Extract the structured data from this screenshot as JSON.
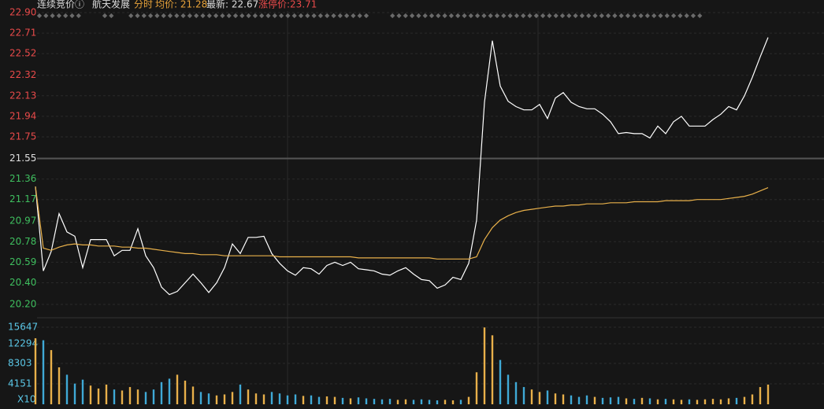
{
  "header": {
    "status": "连续竞价ⓘ",
    "name": "航天发展",
    "mode": "分时",
    "avg": "均价: 21.28",
    "last": "最新: 22.67",
    "limit": "涨停价:23.71"
  },
  "chart_data": [
    {
      "type": "line",
      "series": [
        {
          "color": "#ffffff",
          "values": [
            21.29,
            20.51,
            20.69,
            21.04,
            20.87,
            20.83,
            20.54,
            20.8,
            20.8,
            20.8,
            20.65,
            20.7,
            20.7,
            20.9,
            20.65,
            20.54,
            20.36,
            20.29,
            20.32,
            20.4,
            20.48,
            20.4,
            20.31,
            20.4,
            20.54,
            20.76,
            20.67,
            20.82,
            20.82,
            20.83,
            20.67,
            20.58,
            20.51,
            20.47,
            20.54,
            20.53,
            20.48,
            20.56,
            20.59,
            20.56,
            20.59,
            20.53,
            20.52,
            20.51,
            20.48,
            20.47,
            20.51,
            20.54,
            20.48,
            20.43,
            20.42,
            20.35,
            20.38,
            20.45,
            20.43,
            20.58,
            20.98,
            22.07,
            22.64,
            22.22,
            22.08,
            22.03,
            22.0,
            22.0,
            22.05,
            21.92,
            22.11,
            22.16,
            22.07,
            22.03,
            22.01,
            22.01,
            21.96,
            21.89,
            21.78,
            21.79,
            21.78,
            21.78,
            21.74,
            21.85,
            21.78,
            21.89,
            21.94,
            21.85,
            21.85,
            21.85,
            21.91,
            21.96,
            22.03,
            22.0,
            22.13,
            22.3,
            22.49,
            22.67
          ]
        },
        {
          "color": "#e8b04a",
          "values": [
            21.29,
            20.72,
            20.7,
            20.73,
            20.75,
            20.76,
            20.75,
            20.75,
            20.74,
            20.74,
            20.74,
            20.73,
            20.73,
            20.72,
            20.72,
            20.71,
            20.7,
            20.69,
            20.68,
            20.67,
            20.67,
            20.66,
            20.66,
            20.66,
            20.65,
            20.65,
            20.65,
            20.65,
            20.65,
            20.65,
            20.65,
            20.64,
            20.64,
            20.64,
            20.64,
            20.64,
            20.64,
            20.64,
            20.64,
            20.64,
            20.64,
            20.63,
            20.63,
            20.63,
            20.63,
            20.63,
            20.63,
            20.63,
            20.63,
            20.63,
            20.63,
            20.62,
            20.62,
            20.62,
            20.62,
            20.62,
            20.64,
            20.8,
            20.91,
            20.98,
            21.02,
            21.05,
            21.07,
            21.08,
            21.09,
            21.1,
            21.11,
            21.11,
            21.12,
            21.12,
            21.13,
            21.13,
            21.13,
            21.14,
            21.14,
            21.14,
            21.15,
            21.15,
            21.15,
            21.15,
            21.16,
            21.16,
            21.16,
            21.16,
            21.17,
            21.17,
            21.17,
            21.17,
            21.18,
            21.19,
            21.2,
            21.22,
            21.25,
            21.28
          ]
        }
      ],
      "ylim": [
        20.2,
        22.9
      ],
      "yticks": [
        {
          "value": 22.9,
          "label": "22.90"
        },
        22.71,
        22.52,
        22.32,
        22.13,
        21.94,
        21.75,
        21.55,
        21.36,
        21.17,
        20.97,
        20.78,
        20.59,
        {
          "value": 20.4,
          "label": "20.40"
        },
        {
          "value": 20.2,
          "label": "20.20"
        }
      ],
      "grid": true
    },
    {
      "type": "bar",
      "values": [
        13400,
        13000,
        11000,
        7500,
        6000,
        4200,
        5000,
        3800,
        3200,
        4000,
        3000,
        2800,
        3500,
        3000,
        2500,
        3000,
        4500,
        5200,
        6000,
        4800,
        3600,
        2500,
        2200,
        1800,
        2000,
        2500,
        4000,
        3000,
        2200,
        2000,
        2500,
        2200,
        1800,
        2000,
        1700,
        1800,
        1500,
        1600,
        1500,
        1300,
        1200,
        1400,
        1200,
        1100,
        1000,
        1100,
        900,
        1000,
        900,
        1000,
        900,
        800,
        900,
        800,
        900,
        1500,
        6500,
        15600,
        14000,
        9000,
        6000,
        4500,
        3500,
        3000,
        2500,
        2800,
        2200,
        2000,
        1800,
        1500,
        1800,
        1500,
        1300,
        1400,
        1500,
        1200,
        1100,
        1300,
        1200,
        1000,
        1100,
        1000,
        900,
        1000,
        900,
        1000,
        1100,
        1000,
        1200,
        1300,
        1500,
        2000,
        3500,
        4000
      ],
      "colors": [
        "#e8b04a",
        "#3fa9d6"
      ],
      "ylim": [
        0,
        15647
      ],
      "yticks": [
        15647,
        12294,
        8303,
        4151
      ],
      "y_label": "X10",
      "grid": true
    }
  ]
}
